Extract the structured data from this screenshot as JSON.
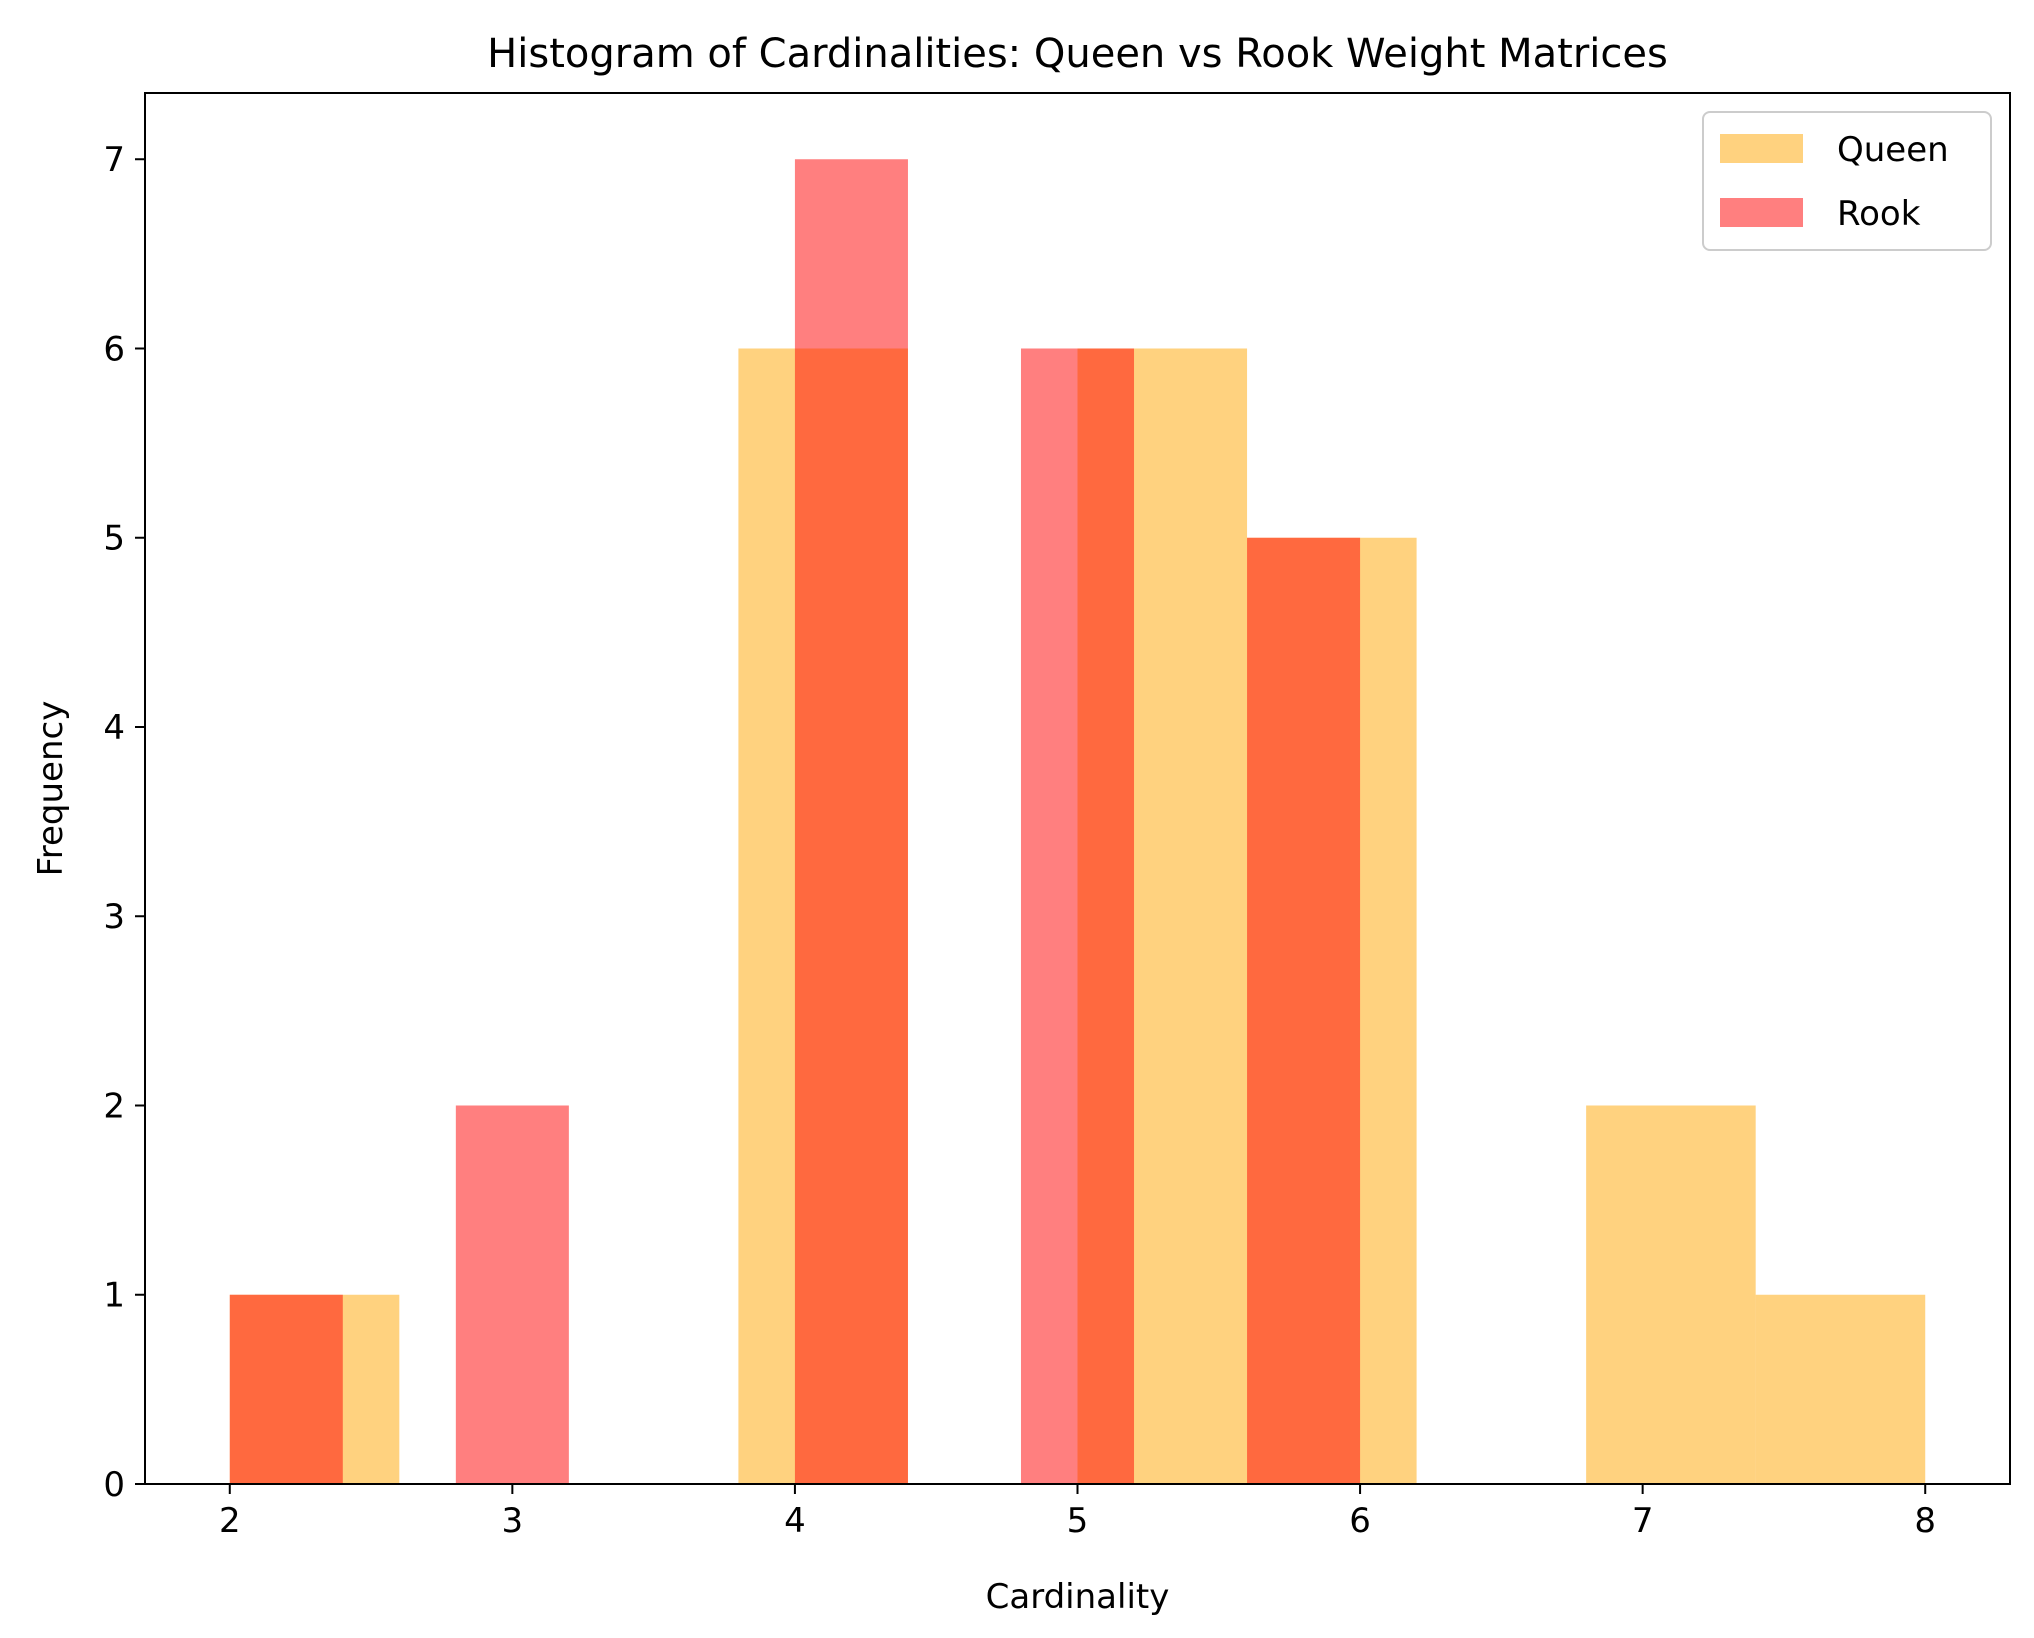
{
  "chart_data": {
    "type": "histogram",
    "title": "Histogram of Cardinalities: Queen vs Rook Weight Matrices",
    "xlabel": "Cardinality",
    "ylabel": "Frequency",
    "xlim": [
      1.7,
      8.3
    ],
    "ylim": [
      0,
      7.35
    ],
    "xticks": [
      2,
      3,
      4,
      5,
      6,
      7,
      8
    ],
    "xtick_labels": [
      "2",
      "3",
      "4",
      "5",
      "6",
      "7",
      "8"
    ],
    "yticks": [
      0,
      1,
      2,
      3,
      4,
      5,
      6,
      7
    ],
    "ytick_labels": [
      "0",
      "1",
      "2",
      "3",
      "4",
      "5",
      "6",
      "7"
    ],
    "grid": false,
    "legend_position": "upper right",
    "series": [
      {
        "name": "Queen",
        "color": "#FFA500",
        "opacity": 0.5,
        "bins": [
          {
            "x0": 2.0,
            "x1": 2.6,
            "count": 1
          },
          {
            "x0": 2.6,
            "x1": 3.2,
            "count": 0
          },
          {
            "x0": 3.2,
            "x1": 3.8,
            "count": 0
          },
          {
            "x0": 3.8,
            "x1": 4.4,
            "count": 6
          },
          {
            "x0": 4.4,
            "x1": 5.0,
            "count": 0
          },
          {
            "x0": 5.0,
            "x1": 5.6,
            "count": 6
          },
          {
            "x0": 5.6,
            "x1": 6.2,
            "count": 5
          },
          {
            "x0": 6.2,
            "x1": 6.8,
            "count": 0
          },
          {
            "x0": 6.8,
            "x1": 7.4,
            "count": 2
          },
          {
            "x0": 7.4,
            "x1": 8.0,
            "count": 1
          }
        ]
      },
      {
        "name": "Rook",
        "color": "#FF0000",
        "opacity": 0.5,
        "bins": [
          {
            "x0": 2.0,
            "x1": 2.4,
            "count": 1
          },
          {
            "x0": 2.4,
            "x1": 2.8,
            "count": 0
          },
          {
            "x0": 2.8,
            "x1": 3.2,
            "count": 2
          },
          {
            "x0": 3.2,
            "x1": 3.6,
            "count": 0
          },
          {
            "x0": 3.6,
            "x1": 4.0,
            "count": 0
          },
          {
            "x0": 4.0,
            "x1": 4.4,
            "count": 7
          },
          {
            "x0": 4.4,
            "x1": 4.8,
            "count": 0
          },
          {
            "x0": 4.8,
            "x1": 5.2,
            "count": 6
          },
          {
            "x0": 5.2,
            "x1": 5.6,
            "count": 0
          },
          {
            "x0": 5.6,
            "x1": 6.0,
            "count": 5
          }
        ]
      }
    ]
  }
}
